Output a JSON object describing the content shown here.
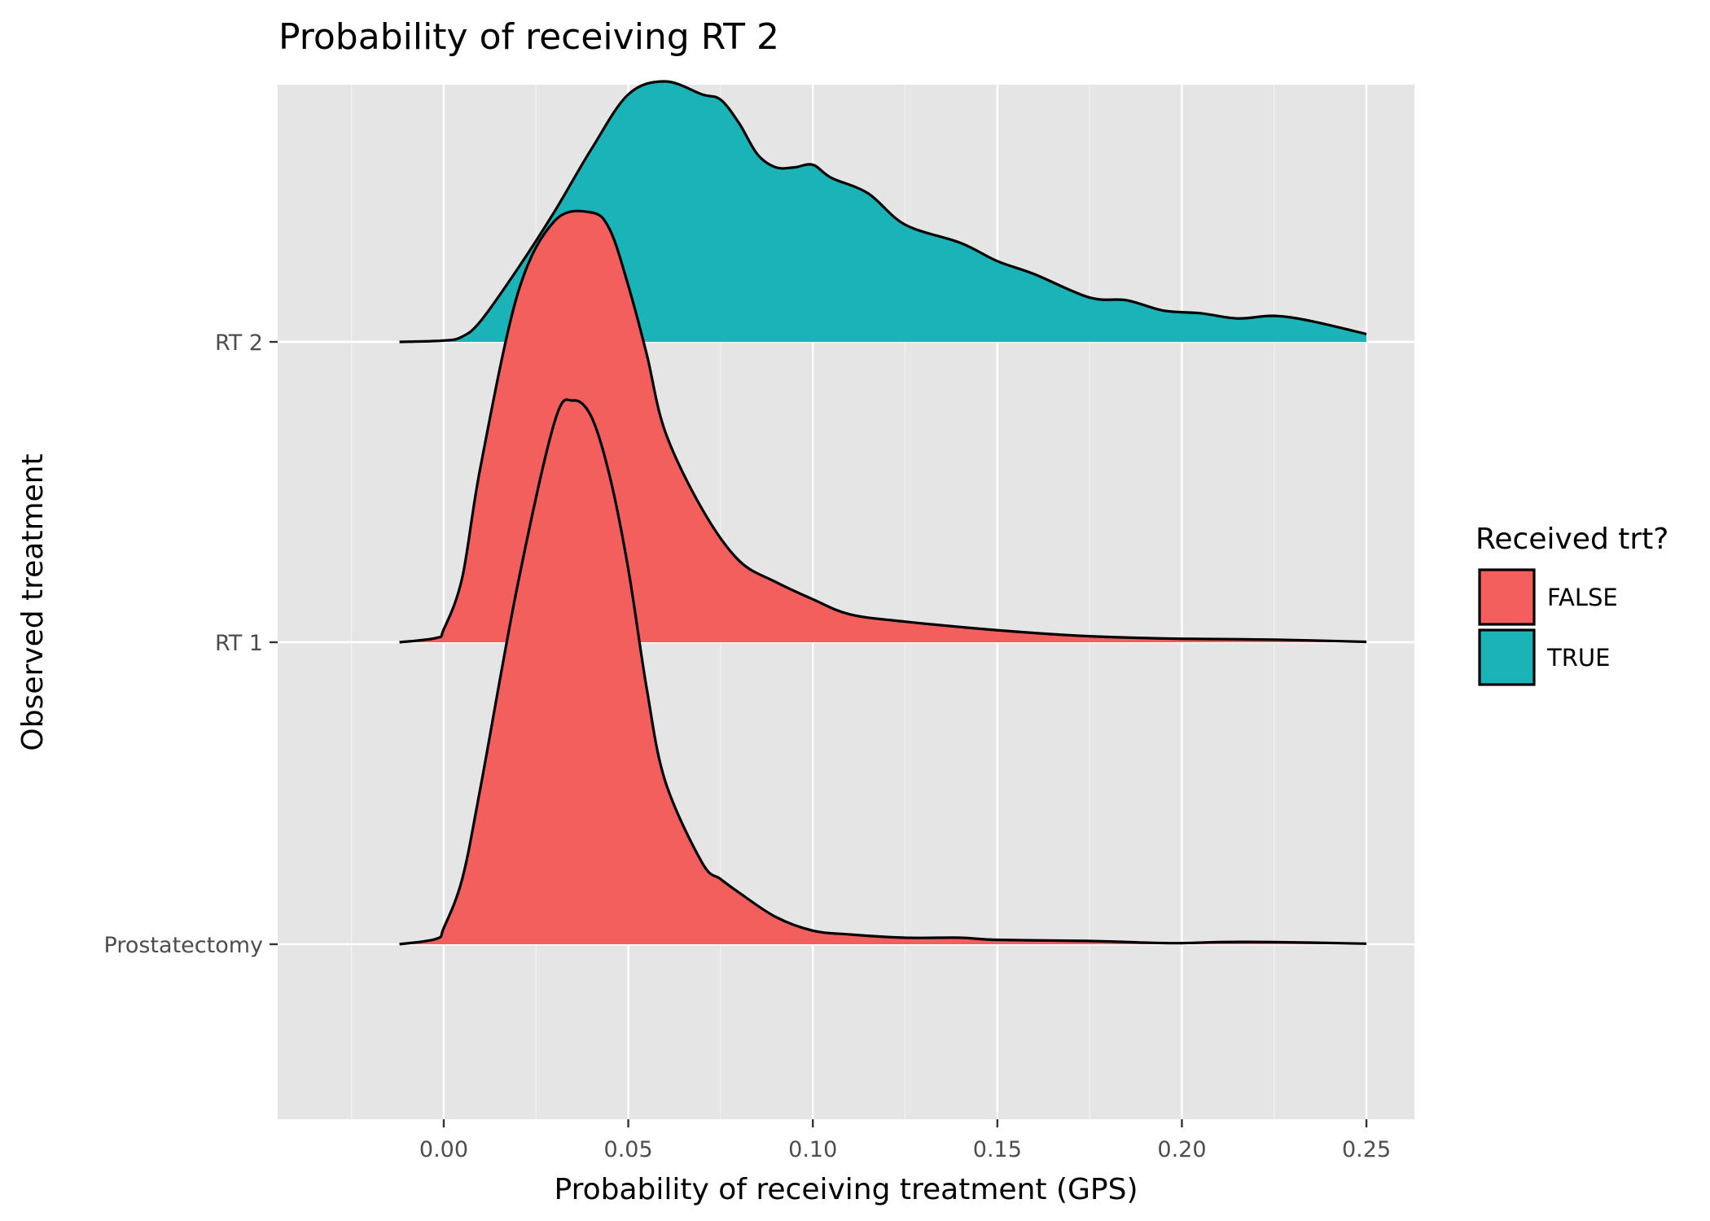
{
  "chart_data": {
    "type": "area",
    "subtype": "ridgeline-density",
    "title": "Probability of receiving RT 2",
    "xlabel": "Probability of receiving treatment (GPS)",
    "ylabel": "Observed treatment",
    "xlim": [
      -0.045,
      0.263
    ],
    "x_ticks": [
      "0.00",
      "0.05",
      "0.10",
      "0.15",
      "0.20",
      "0.25"
    ],
    "x_tick_values": [
      0,
      0.05,
      0.1,
      0.15,
      0.2,
      0.25
    ],
    "y_categories": [
      "Prostatectomy",
      "RT 1",
      "RT 2"
    ],
    "legend": {
      "title": "Received trt?",
      "position": "right",
      "entries": [
        {
          "label": "FALSE",
          "color": "#F25F5C"
        },
        {
          "label": "TRUE",
          "color": "#1AB3B8"
        }
      ]
    },
    "grid": true,
    "series": [
      {
        "category": "Prostatectomy",
        "received": "FALSE",
        "x": [
          -0.012,
          -0.002,
          0.0,
          0.005,
          0.01,
          0.02,
          0.03,
          0.035,
          0.04,
          0.045,
          0.05,
          0.055,
          0.06,
          0.07,
          0.075,
          0.08,
          0.09,
          0.1,
          0.11,
          0.125,
          0.14,
          0.15,
          0.175,
          0.19,
          0.2,
          0.21,
          0.225,
          0.25
        ],
        "density": [
          0.0,
          0.01,
          0.03,
          0.12,
          0.29,
          0.66,
          0.96,
          1.0,
          0.97,
          0.86,
          0.69,
          0.47,
          0.3,
          0.15,
          0.12,
          0.095,
          0.05,
          0.025,
          0.018,
          0.012,
          0.012,
          0.008,
          0.006,
          0.003,
          0.002,
          0.004,
          0.004,
          0.001
        ]
      },
      {
        "category": "RT 1",
        "received": "FALSE",
        "x": [
          -0.012,
          -0.002,
          0.0,
          0.005,
          0.01,
          0.02,
          0.03,
          0.04,
          0.045,
          0.05,
          0.055,
          0.06,
          0.07,
          0.08,
          0.09,
          0.1,
          0.11,
          0.125,
          0.15,
          0.175,
          0.2,
          0.225,
          0.25
        ],
        "density": [
          0.0,
          0.01,
          0.03,
          0.15,
          0.41,
          0.81,
          0.98,
          1.0,
          0.96,
          0.83,
          0.67,
          0.49,
          0.31,
          0.19,
          0.14,
          0.1,
          0.065,
          0.048,
          0.028,
          0.014,
          0.008,
          0.006,
          0.001
        ]
      },
      {
        "category": "RT 2",
        "received": "TRUE",
        "x": [
          -0.012,
          0.0,
          0.005,
          0.01,
          0.02,
          0.03,
          0.04,
          0.05,
          0.06,
          0.07,
          0.075,
          0.08,
          0.085,
          0.09,
          0.095,
          0.1,
          0.105,
          0.115,
          0.125,
          0.14,
          0.15,
          0.16,
          0.175,
          0.185,
          0.195,
          0.205,
          0.215,
          0.225,
          0.235,
          0.25
        ],
        "density": [
          0.0,
          0.005,
          0.02,
          0.08,
          0.28,
          0.5,
          0.74,
          0.95,
          1.0,
          0.95,
          0.93,
          0.84,
          0.72,
          0.67,
          0.67,
          0.68,
          0.63,
          0.57,
          0.45,
          0.38,
          0.31,
          0.26,
          0.17,
          0.16,
          0.12,
          0.11,
          0.09,
          0.1,
          0.08,
          0.03
        ]
      }
    ]
  }
}
